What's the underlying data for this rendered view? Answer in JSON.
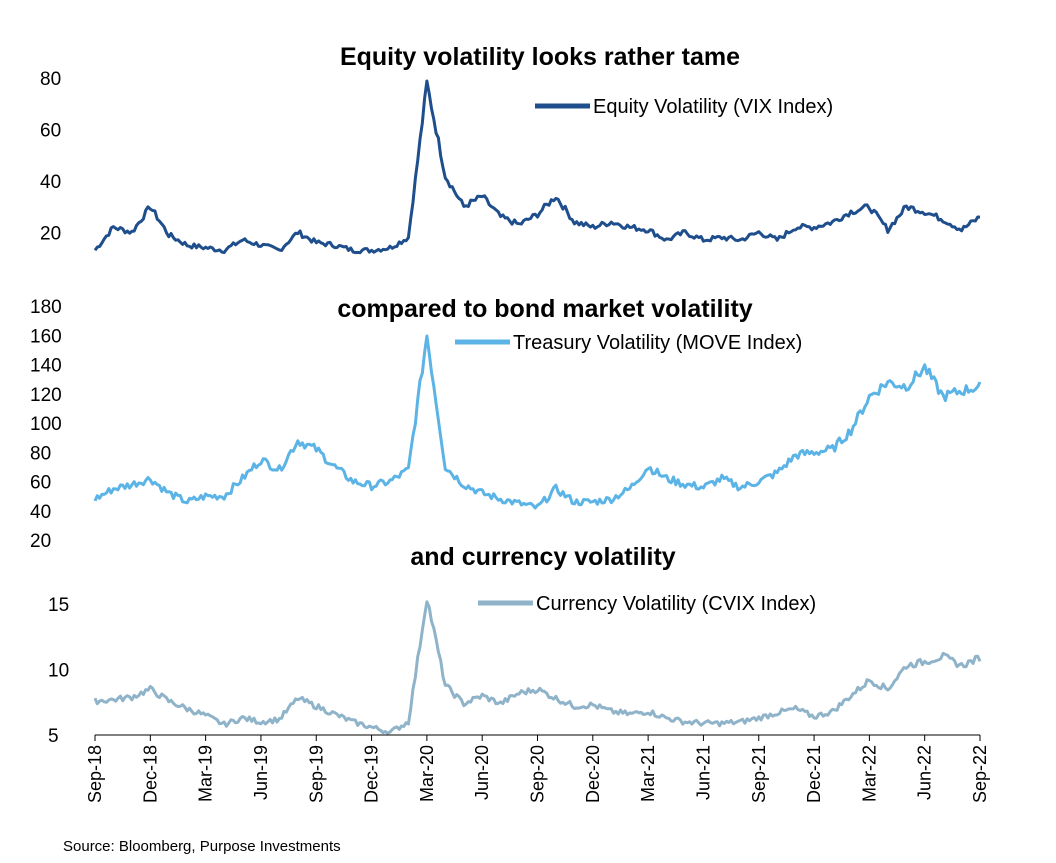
{
  "source": "Source: Bloomberg, Purpose Investments",
  "x_tick_labels": [
    "Sep-18",
    "Dec-18",
    "Mar-19",
    "Jun-19",
    "Sep-19",
    "Dec-19",
    "Mar-20",
    "Jun-20",
    "Sep-20",
    "Dec-20",
    "Mar-21",
    "Jun-21",
    "Sep-21",
    "Dec-21",
    "Mar-22",
    "Jun-22",
    "Sep-22"
  ],
  "chart_data": [
    {
      "type": "line",
      "title": "Equity volatility looks rather tame",
      "xlabel": "",
      "ylabel": "",
      "xlim": [
        "2018-09",
        "2022-09"
      ],
      "ylim": [
        10,
        82
      ],
      "yticks": [
        20,
        40,
        60,
        80
      ],
      "legend": "top-right",
      "grid": false,
      "series": [
        {
          "name": "Equity Volatility (VIX Index)",
          "color": "#1f4e8c",
          "x": [
            "2018-09",
            "2018-10",
            "2018-11",
            "2018-12",
            "2019-01",
            "2019-02",
            "2019-03",
            "2019-04",
            "2019-05",
            "2019-06",
            "2019-07",
            "2019-08",
            "2019-09",
            "2019-10",
            "2019-11",
            "2019-12",
            "2020-01",
            "2020-02",
            "2020-03",
            "2020-04",
            "2020-05",
            "2020-06",
            "2020-07",
            "2020-08",
            "2020-09",
            "2020-10",
            "2020-11",
            "2020-12",
            "2021-01",
            "2021-02",
            "2021-03",
            "2021-04",
            "2021-05",
            "2021-06",
            "2021-07",
            "2021-08",
            "2021-09",
            "2021-10",
            "2021-11",
            "2021-12",
            "2022-01",
            "2022-02",
            "2022-03",
            "2022-04",
            "2022-05",
            "2022-06",
            "2022-07",
            "2022-08",
            "2022-09"
          ],
          "values": [
            13,
            22,
            20,
            30,
            19,
            15,
            14,
            13,
            17,
            15,
            13,
            20,
            16,
            15,
            13,
            13,
            14,
            18,
            78,
            42,
            30,
            34,
            26,
            23,
            27,
            34,
            24,
            22,
            24,
            22,
            21,
            17,
            20,
            17,
            18,
            17,
            20,
            17,
            22,
            22,
            24,
            28,
            30,
            21,
            30,
            28,
            25,
            21,
            26
          ]
        }
      ]
    },
    {
      "type": "line",
      "title": "compared to bond market volatility",
      "xlabel": "",
      "ylabel": "",
      "xlim": [
        "2018-09",
        "2022-09"
      ],
      "ylim": [
        20,
        180
      ],
      "yticks": [
        20,
        40,
        60,
        80,
        100,
        120,
        140,
        160,
        180
      ],
      "legend": "top-right",
      "grid": false,
      "series": [
        {
          "name": "Treasury Volatility (MOVE Index)",
          "color": "#5bb4e5",
          "x": [
            "2018-09",
            "2018-10",
            "2018-11",
            "2018-12",
            "2019-01",
            "2019-02",
            "2019-03",
            "2019-04",
            "2019-05",
            "2019-06",
            "2019-07",
            "2019-08",
            "2019-09",
            "2019-10",
            "2019-11",
            "2019-12",
            "2020-01",
            "2020-02",
            "2020-03",
            "2020-04",
            "2020-05",
            "2020-06",
            "2020-07",
            "2020-08",
            "2020-09",
            "2020-10",
            "2020-11",
            "2020-12",
            "2021-01",
            "2021-02",
            "2021-03",
            "2021-04",
            "2021-05",
            "2021-06",
            "2021-07",
            "2021-08",
            "2021-09",
            "2021-10",
            "2021-11",
            "2021-12",
            "2022-01",
            "2022-02",
            "2022-03",
            "2022-04",
            "2022-05",
            "2022-06",
            "2022-07",
            "2022-08",
            "2022-09"
          ],
          "values": [
            48,
            55,
            58,
            62,
            52,
            46,
            50,
            50,
            62,
            75,
            68,
            88,
            82,
            70,
            60,
            57,
            60,
            68,
            160,
            70,
            58,
            52,
            48,
            45,
            42,
            55,
            46,
            46,
            48,
            55,
            70,
            62,
            58,
            56,
            62,
            56,
            60,
            66,
            78,
            80,
            82,
            95,
            118,
            128,
            125,
            138,
            118,
            122,
            125
          ]
        }
      ]
    },
    {
      "type": "line",
      "title": "and currency volatility",
      "xlabel": "",
      "ylabel": "",
      "xlim": [
        "2018-09",
        "2022-09"
      ],
      "ylim": [
        5,
        17
      ],
      "yticks": [
        5,
        10,
        15
      ],
      "legend": "top-right",
      "grid": false,
      "series": [
        {
          "name": "Currency Volatility (CVIX Index)",
          "color": "#8fb3c9",
          "x": [
            "2018-09",
            "2018-10",
            "2018-11",
            "2018-12",
            "2019-01",
            "2019-02",
            "2019-03",
            "2019-04",
            "2019-05",
            "2019-06",
            "2019-07",
            "2019-08",
            "2019-09",
            "2019-10",
            "2019-11",
            "2019-12",
            "2020-01",
            "2020-02",
            "2020-03",
            "2020-04",
            "2020-05",
            "2020-06",
            "2020-07",
            "2020-08",
            "2020-09",
            "2020-10",
            "2020-11",
            "2020-12",
            "2021-01",
            "2021-02",
            "2021-03",
            "2021-04",
            "2021-05",
            "2021-06",
            "2021-07",
            "2021-08",
            "2021-09",
            "2021-10",
            "2021-11",
            "2021-12",
            "2022-01",
            "2022-02",
            "2022-03",
            "2022-04",
            "2022-05",
            "2022-06",
            "2022-07",
            "2022-08",
            "2022-09"
          ],
          "values": [
            7.6,
            7.7,
            7.9,
            8.5,
            7.6,
            7.0,
            6.5,
            5.8,
            6.3,
            6.0,
            6.2,
            7.8,
            7.2,
            6.6,
            6.0,
            5.6,
            5.2,
            6.0,
            15.5,
            8.8,
            7.4,
            8.0,
            7.4,
            8.2,
            8.5,
            7.8,
            7.2,
            7.3,
            6.8,
            6.6,
            6.8,
            6.3,
            6.0,
            5.9,
            5.9,
            6.0,
            6.3,
            6.7,
            7.0,
            6.4,
            6.8,
            8.0,
            9.2,
            8.5,
            10.3,
            10.6,
            11.0,
            10.3,
            10.9
          ]
        }
      ]
    }
  ]
}
